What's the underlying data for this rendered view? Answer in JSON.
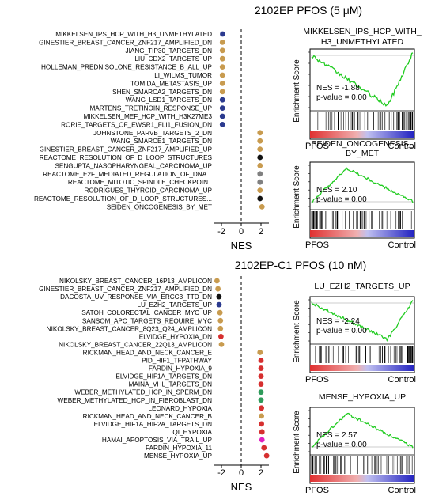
{
  "panels": [
    {
      "title": "2102EP PFOS (5 μM)",
      "xaxis_label": "NES",
      "ticks": [
        -2,
        0,
        2
      ],
      "xlim": [
        -2.8,
        2.8
      ],
      "gsea": [
        {
          "title_lines": [
            "MIKKELSEN_IPS_HCP_WITH_",
            "H3_UNMETHYLATED"
          ],
          "nes_text": "NES = -1.88",
          "p_text": "p-value = 0.00",
          "ylabel": "Enrichment Score",
          "x_left": "PFOS",
          "x_right": "Control",
          "direction": "down"
        },
        {
          "title_lines": [
            "SEIDEN_ONCOGENESIS_",
            "BY_MET"
          ],
          "nes_text": "NES = 2.10",
          "p_text": "p-value = 0.00",
          "ylabel": "Enrichment Score",
          "x_left": "PFOS",
          "x_right": "Control",
          "direction": "up"
        }
      ]
    },
    {
      "title": "2102EP-C1 PFOS (10 nM)",
      "xaxis_label": "NES",
      "ticks": [
        -2,
        0,
        2
      ],
      "xlim": [
        -2.8,
        2.8
      ],
      "gsea": [
        {
          "title_lines": [
            "LU_EZH2_TARGETS_UP"
          ],
          "nes_text": "NES = -2.24",
          "p_text": "p-value = 0.00",
          "ylabel": "Enrichment Score",
          "x_left": "PFOS",
          "x_right": "Control",
          "direction": "down"
        },
        {
          "title_lines": [
            "MENSE_HYPOXIA_UP"
          ],
          "nes_text": "NES = 2.57",
          "p_text": "p-value = 0.00",
          "ylabel": "Enrichment Score",
          "x_left": "PFOS",
          "x_right": "Control",
          "direction": "up"
        }
      ]
    }
  ],
  "chart_data": [
    {
      "type": "scatter",
      "title": "2102EP PFOS (5 μM)",
      "xlabel": "NES",
      "xlim": [
        -2.8,
        2.8
      ],
      "colors": {
        "navy": "#2b3a8f",
        "tan": "#c89b4f",
        "black": "#111111",
        "gray": "#808080"
      },
      "points": [
        {
          "label": "MIKKELSEN_IPS_HCP_WITH_H3_UNMETHYLATED",
          "nes": -1.88,
          "color": "navy"
        },
        {
          "label": "GINESTIER_BREAST_CANCER_ZNF217_AMPLIFIED_DN",
          "nes": -1.9,
          "color": "tan"
        },
        {
          "label": "JIANG_TIP30_TARGETS_DN",
          "nes": -1.9,
          "color": "tan"
        },
        {
          "label": "LIU_CDX2_TARGETS_UP",
          "nes": -1.9,
          "color": "tan"
        },
        {
          "label": "HOLLEMAN_PREDNISOLONE_RESISTANCE_B_ALL_UP",
          "nes": -1.9,
          "color": "tan"
        },
        {
          "label": "LI_WILMS_TUMOR",
          "nes": -1.9,
          "color": "tan"
        },
        {
          "label": "TOMIDA_METASTASIS_UP",
          "nes": -1.9,
          "color": "tan"
        },
        {
          "label": "SHEN_SMARCA2_TARGETS_DN",
          "nes": -1.9,
          "color": "tan"
        },
        {
          "label": "WANG_LSD1_TARGETS_DN",
          "nes": -1.9,
          "color": "navy"
        },
        {
          "label": "MARTENS_TRETINOIN_RESPONSE_UP",
          "nes": -1.9,
          "color": "navy"
        },
        {
          "label": "MIKKELSEN_MEF_HCP_WITH_H3K27ME3",
          "nes": -1.9,
          "color": "navy"
        },
        {
          "label": "RORIE_TARGETS_OF_EWSR1_FLI1_FUSION_DN",
          "nes": -1.9,
          "color": "navy"
        },
        {
          "label": "JOHNSTONE_PARVB_TARGETS_2_DN",
          "nes": 1.9,
          "color": "tan"
        },
        {
          "label": "WANG_SMARCE1_TARGETS_DN",
          "nes": 1.9,
          "color": "tan"
        },
        {
          "label": "GINESTIER_BREAST_CANCER_ZNF217_AMPLIFIED_UP",
          "nes": 1.9,
          "color": "tan"
        },
        {
          "label": "REACTOME_RESOLUTION_OF_D_LOOP_STRUCTURES",
          "nes": 1.9,
          "color": "black"
        },
        {
          "label": "SENGUPTA_NASOPHARYNGEAL_CARCINOMA_UP",
          "nes": 1.9,
          "color": "tan"
        },
        {
          "label": "REACTOME_E2F_MEDIATED_REGULATION_OF_DNA...",
          "nes": 1.9,
          "color": "gray"
        },
        {
          "label": "REACTOME_MITOTIC_SPINDLE_CHECKPOINT",
          "nes": 1.9,
          "color": "gray"
        },
        {
          "label": "RODRIGUES_THYROID_CARCINOMA_UP",
          "nes": 1.9,
          "color": "tan"
        },
        {
          "label": "REACTOME_RESOLUTION_OF_D_LOOP_STRUCTURES...",
          "nes": 1.9,
          "color": "black"
        },
        {
          "label": "SEIDEN_ONCOGENESIS_BY_MET",
          "nes": 2.1,
          "color": "tan"
        }
      ]
    },
    {
      "type": "scatter",
      "title": "2102EP-C1 PFOS (10 nM)",
      "xlabel": "NES",
      "xlim": [
        -2.8,
        2.8
      ],
      "colors": {
        "navy": "#2b3a8f",
        "tan": "#c89b4f",
        "black": "#111111",
        "red": "#d62f2f",
        "green": "#2e9a5a",
        "magenta": "#e020c0"
      },
      "points": [
        {
          "label": "NIKOLSKY_BREAST_CANCER_16P13_AMPLICON",
          "nes": -2.45,
          "color": "tan"
        },
        {
          "label": "GINESTIER_BREAST_CANCER_ZNF217_AMPLIFIED_DN",
          "nes": -2.35,
          "color": "tan"
        },
        {
          "label": "DACOSTA_UV_RESPONSE_VIA_ERCC3_TTD_DN",
          "nes": -2.25,
          "color": "black"
        },
        {
          "label": "LU_EZH2_TARGETS_UP",
          "nes": -2.24,
          "color": "navy"
        },
        {
          "label": "SATOH_COLORECTAL_CANCER_MYC_UP",
          "nes": -2.15,
          "color": "tan"
        },
        {
          "label": "SANSOM_APC_TARGETS_REQUIRE_MYC",
          "nes": -2.1,
          "color": "tan"
        },
        {
          "label": "NIKOLSKY_BREAST_CANCER_8Q23_Q24_AMPLICON",
          "nes": -2.1,
          "color": "tan"
        },
        {
          "label": "ELVIDGE_HYPOXIA_DN",
          "nes": -2.05,
          "color": "red"
        },
        {
          "label": "NIKOLSKY_BREAST_CANCER_22Q13_AMPLICON",
          "nes": -2.0,
          "color": "tan"
        },
        {
          "label": "RICKMAN_HEAD_AND_NECK_CANCER_E",
          "nes": 1.9,
          "color": "tan"
        },
        {
          "label": "PID_HIF1_TFPATHWAY",
          "nes": 2.0,
          "color": "red"
        },
        {
          "label": "FARDIN_HYPOXIA_9",
          "nes": 2.0,
          "color": "red"
        },
        {
          "label": "ELVIDGE_HIF1A_TARGETS_DN",
          "nes": 2.0,
          "color": "red"
        },
        {
          "label": "MAINA_VHL_TARGETS_DN",
          "nes": 2.0,
          "color": "red"
        },
        {
          "label": "WEBER_METHYLATED_HCP_IN_SPERM_DN",
          "nes": 2.0,
          "color": "green"
        },
        {
          "label": "WEBER_METHYLATED_HCP_IN_FIBROBLAST_DN",
          "nes": 2.0,
          "color": "green"
        },
        {
          "label": "LEONARD_HYPOXIA",
          "nes": 2.05,
          "color": "red"
        },
        {
          "label": "RICKMAN_HEAD_AND_NECK_CANCER_B",
          "nes": 2.05,
          "color": "tan"
        },
        {
          "label": "ELVIDGE_HIF1A_HIF2A_TARGETS_DN",
          "nes": 2.05,
          "color": "red"
        },
        {
          "label": "QI_HYPOXIA",
          "nes": 2.1,
          "color": "red"
        },
        {
          "label": "HAMAI_APOPTOSIS_VIA_TRAIL_UP",
          "nes": 2.1,
          "color": "magenta"
        },
        {
          "label": "FARDIN_HYPOXIA_11",
          "nes": 2.3,
          "color": "red"
        },
        {
          "label": "MENSE_HYPOXIA_UP",
          "nes": 2.57,
          "color": "red"
        }
      ]
    }
  ]
}
